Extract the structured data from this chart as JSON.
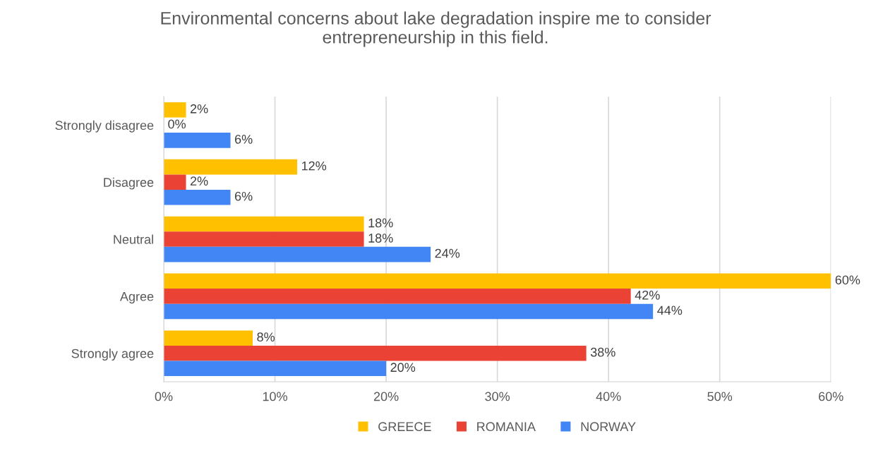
{
  "chart_data": {
    "type": "bar",
    "orientation": "horizontal",
    "title": "Environmental concerns about lake degradation inspire me to consider\nentrepreneurship in this field.",
    "categories": [
      "Strongly disagree",
      "Disagree",
      "Neutral",
      "Agree",
      "Strongly agree"
    ],
    "series": [
      {
        "name": "GREECE",
        "color": "#ffc000",
        "values": [
          2,
          12,
          18,
          60,
          8
        ],
        "value_labels": [
          "2%",
          "12%",
          "18%",
          "60%",
          "8%"
        ]
      },
      {
        "name": "ROMANIA",
        "color": "#ea4335",
        "values": [
          0,
          2,
          18,
          42,
          38
        ],
        "value_labels": [
          "0%",
          "2%",
          "18%",
          "42%",
          "38%"
        ]
      },
      {
        "name": "NORWAY",
        "color": "#4285f4",
        "values": [
          6,
          6,
          24,
          44,
          20
        ],
        "value_labels": [
          "6%",
          "6%",
          "24%",
          "44%",
          "20%"
        ]
      }
    ],
    "xlim": [
      0,
      60
    ],
    "xticks": [
      {
        "value": 0,
        "label": "0%"
      },
      {
        "value": 10,
        "label": "10%"
      },
      {
        "value": 20,
        "label": "20%"
      },
      {
        "value": 30,
        "label": "30%"
      },
      {
        "value": 40,
        "label": "40%"
      },
      {
        "value": 50,
        "label": "50%"
      },
      {
        "value": 60,
        "label": "60%"
      }
    ],
    "grid": "x",
    "legend": "bottom"
  }
}
